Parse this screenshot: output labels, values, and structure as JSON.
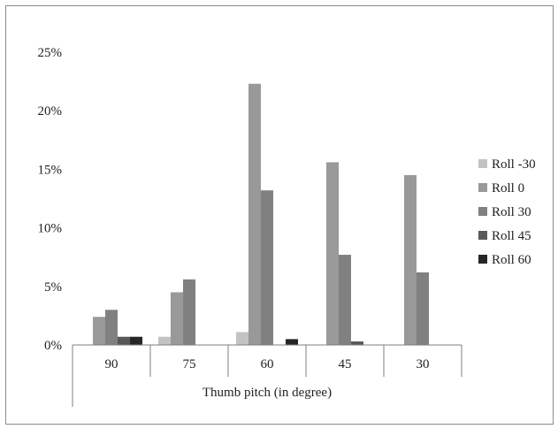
{
  "chart_data": {
    "type": "bar",
    "title": "",
    "xlabel": "Thumb pitch (in degree)",
    "ylabel": "",
    "categories": [
      "90",
      "75",
      "60",
      "45",
      "30"
    ],
    "ylim": [
      0,
      25
    ],
    "yticks": [
      0,
      5,
      10,
      15,
      20,
      25
    ],
    "ytick_labels": [
      "0%",
      "5%",
      "10%",
      "15%",
      "20%",
      "25%"
    ],
    "grid": false,
    "legend_position": "right",
    "series": [
      {
        "name": "Roll -30",
        "color": "#c3c3c3",
        "values": [
          0,
          0.7,
          1.1,
          0,
          0
        ]
      },
      {
        "name": "Roll 0",
        "color": "#999999",
        "values": [
          2.4,
          4.5,
          22.3,
          15.6,
          14.5
        ]
      },
      {
        "name": "Roll 30",
        "color": "#808080",
        "values": [
          3.0,
          5.6,
          13.2,
          7.7,
          6.2
        ]
      },
      {
        "name": "Roll 45",
        "color": "#595959",
        "values": [
          0.7,
          0,
          0,
          0.3,
          0
        ]
      },
      {
        "name": "Roll 60",
        "color": "#262626",
        "values": [
          0.7,
          0,
          0.5,
          0,
          0
        ]
      }
    ]
  }
}
